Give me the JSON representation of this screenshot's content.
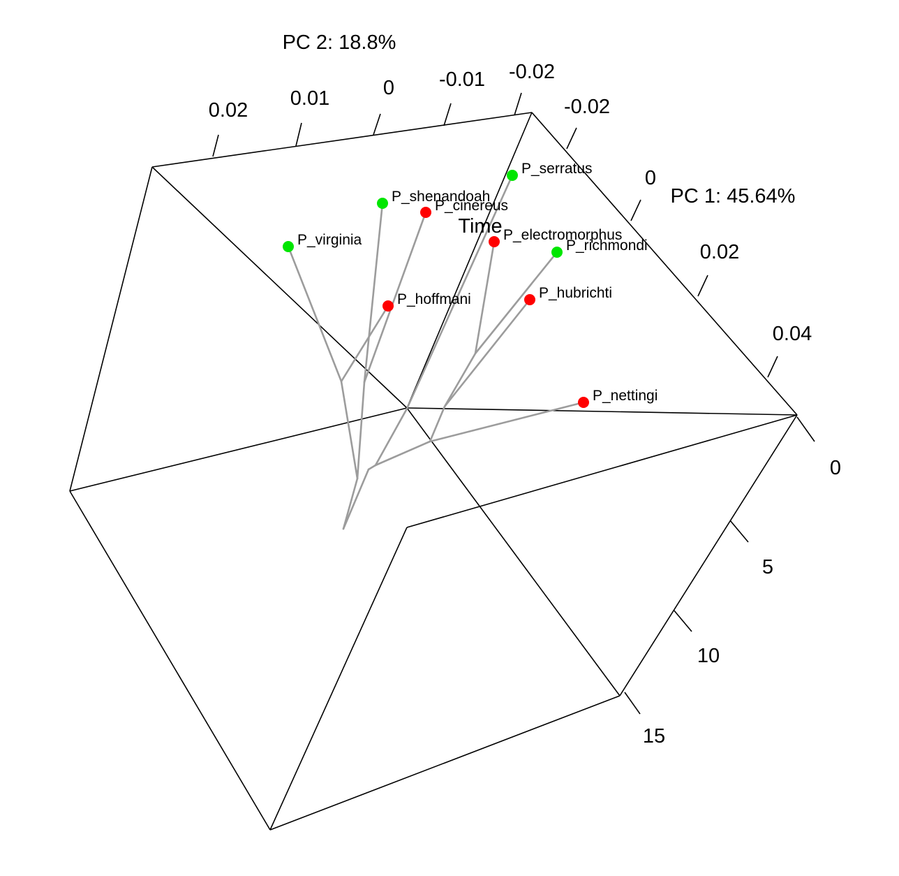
{
  "chart_data": {
    "type": "scatter",
    "title": "",
    "axes": {
      "pc1": {
        "label": "PC 1: 45.64%",
        "ticks": [
          "-0.02",
          "0",
          "0.02",
          "0.04"
        ]
      },
      "pc2": {
        "label": "PC 2: 18.8%",
        "ticks": [
          "0.02",
          "0.01",
          "0",
          "-0.01",
          "-0.02"
        ]
      },
      "time": {
        "label": "Time",
        "ticks": [
          "0",
          "5",
          "10",
          "15"
        ]
      }
    },
    "groups": [
      {
        "name": "green",
        "color": "#00e600"
      },
      {
        "name": "red",
        "color": "#ff0000"
      }
    ],
    "branch_color": "#9c9c9c",
    "tips": [
      {
        "name": "P_serratus",
        "group": "green"
      },
      {
        "name": "P_shenandoah",
        "group": "green"
      },
      {
        "name": "P_cinereus",
        "group": "red"
      },
      {
        "name": "P_virginia",
        "group": "green"
      },
      {
        "name": "P_electromorphus",
        "group": "red"
      },
      {
        "name": "P_richmondi",
        "group": "green"
      },
      {
        "name": "P_hoffmani",
        "group": "red"
      },
      {
        "name": "P_hubrichti",
        "group": "red"
      },
      {
        "name": "P_nettingi",
        "group": "red"
      }
    ],
    "grid": false
  }
}
